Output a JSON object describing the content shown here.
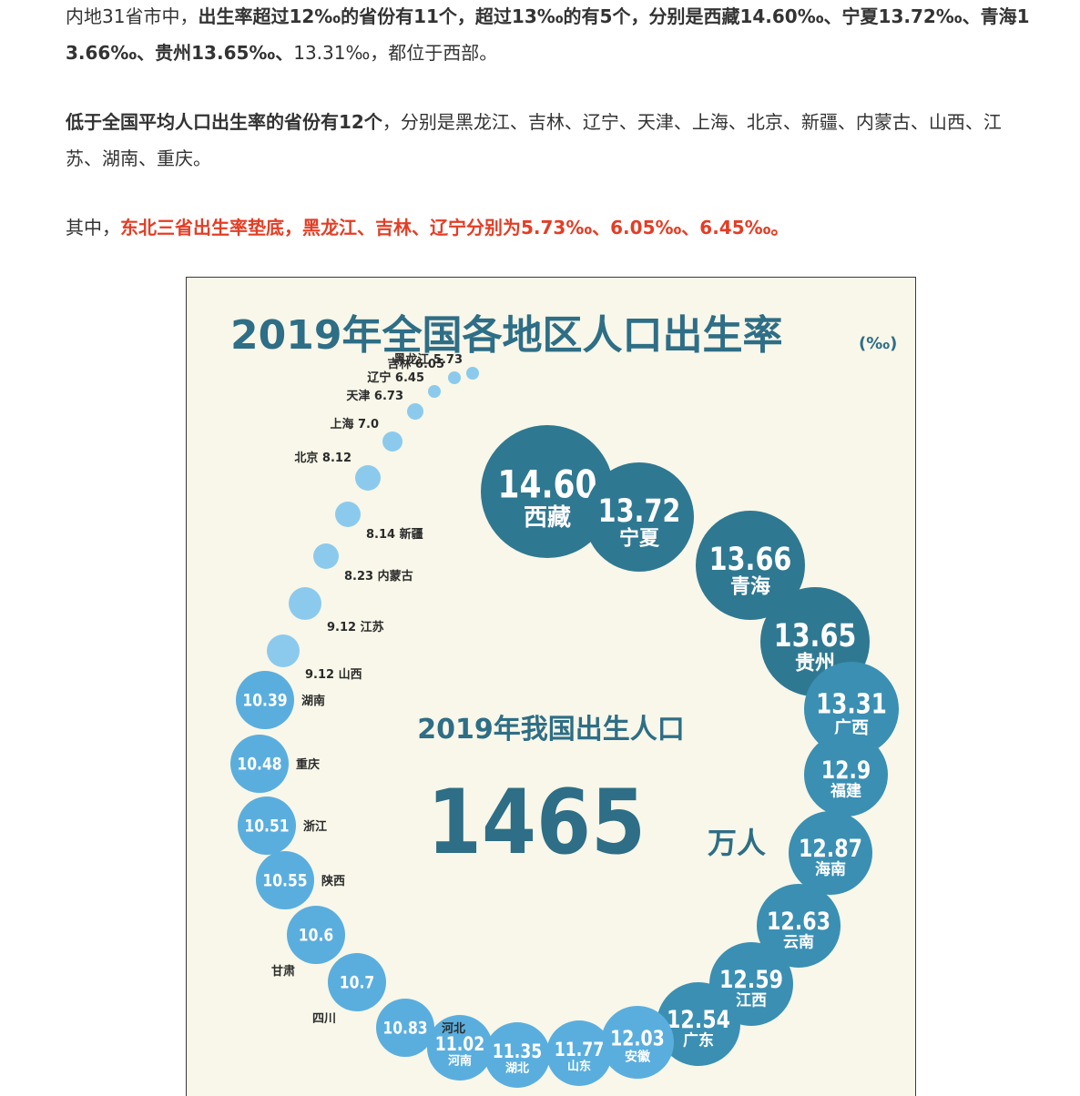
{
  "article": {
    "p1": {
      "s1": "内地31省市中，",
      "b1": "出生率超过12‰的省份有11个，超过13‰的有5个，分别是西藏14.60‰、宁夏13.72‰、青海13.66‰、贵州13.65‰、",
      "s2": "13.31‰，都位于西部。"
    },
    "p2": {
      "b1": "低于全国平均人口出生率的省份有12个",
      "s1": "，分别是黑龙江、吉林、辽宁、天津、上海、北京、新疆、内蒙古、山西、江苏、湖南、重庆。"
    },
    "p3": {
      "s1": "其中，",
      "r1": "东北三省出生率垫底，黑龙江、吉林、辽宁分别为5.73‰、6.05‰、6.45‰。"
    }
  },
  "infographic": {
    "title": "2019年全国各地区人口出生率",
    "title_unit": "(‰)",
    "center_caption": "2019年我国出生人口",
    "center_value": "1465",
    "center_unit": "万人",
    "colors": {
      "background": "#f8f7e9",
      "title": "#2e6e86",
      "dark_bubble": "#2f7891",
      "mid_bubble": "#3a8fb3",
      "light_bubble": "#5aaede",
      "small_bubble": "#8ccaed",
      "label_text": "#2b2b2b"
    }
  },
  "chart_data": {
    "type": "bubble",
    "title": "2019年全国各地区人口出生率",
    "unit": "‰",
    "points": [
      {
        "name": "西藏",
        "value": "14.60"
      },
      {
        "name": "宁夏",
        "value": "13.72"
      },
      {
        "name": "青海",
        "value": "13.66"
      },
      {
        "name": "贵州",
        "value": "13.65"
      },
      {
        "name": "广西",
        "value": "13.31"
      },
      {
        "name": "福建",
        "value": "12.9"
      },
      {
        "name": "海南",
        "value": "12.87"
      },
      {
        "name": "云南",
        "value": "12.63"
      },
      {
        "name": "江西",
        "value": "12.59"
      },
      {
        "name": "广东",
        "value": "12.54"
      },
      {
        "name": "安徽",
        "value": "12.03"
      },
      {
        "name": "山东",
        "value": "11.77"
      },
      {
        "name": "湖北",
        "value": "11.35"
      },
      {
        "name": "河南",
        "value": "11.02"
      },
      {
        "name": "河北",
        "value": "10.83"
      },
      {
        "name": "四川",
        "value": "10.7"
      },
      {
        "name": "甘肃",
        "value": "10.6"
      },
      {
        "name": "陕西",
        "value": "10.55"
      },
      {
        "name": "浙江",
        "value": "10.51"
      },
      {
        "name": "重庆",
        "value": "10.48"
      },
      {
        "name": "湖南",
        "value": "10.39"
      },
      {
        "name": "山西",
        "value": "9.12"
      },
      {
        "name": "江苏",
        "value": "9.12"
      },
      {
        "name": "内蒙古",
        "value": "8.23"
      },
      {
        "name": "新疆",
        "value": "8.14"
      },
      {
        "name": "北京",
        "value": "8.12"
      },
      {
        "name": "上海",
        "value": "7.0"
      },
      {
        "name": "天津",
        "value": "6.73"
      },
      {
        "name": "辽宁",
        "value": "6.45"
      },
      {
        "name": "吉林",
        "value": "6.05"
      },
      {
        "name": "黑龙江",
        "value": "5.73"
      }
    ]
  }
}
